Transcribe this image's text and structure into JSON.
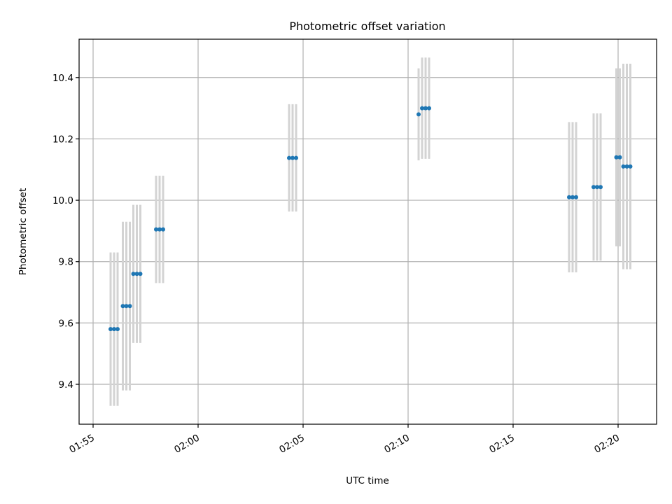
{
  "chart_data": {
    "type": "scatter",
    "title": "Photometric offset variation",
    "xlabel": "UTC time",
    "ylabel": "Photometric offset",
    "xlim": [
      "01:54:20",
      "02:21:50"
    ],
    "ylim": [
      9.27,
      10.525
    ],
    "x_ticks": [
      "01:55",
      "02:00",
      "02:05",
      "02:10",
      "02:15",
      "02:20"
    ],
    "y_ticks": [
      9.4,
      9.6,
      9.8,
      10.0,
      10.2,
      10.4
    ],
    "grid": true,
    "colors": {
      "points": "#1f77b4",
      "errorbars": "#d3d3d3"
    },
    "points": [
      {
        "x": "01:55:50",
        "y": 9.58,
        "yerr": 0.25
      },
      {
        "x": "01:56:00",
        "y": 9.58,
        "yerr": 0.25
      },
      {
        "x": "01:56:10",
        "y": 9.58,
        "yerr": 0.25
      },
      {
        "x": "01:56:25",
        "y": 9.655,
        "yerr": 0.275
      },
      {
        "x": "01:56:35",
        "y": 9.655,
        "yerr": 0.275
      },
      {
        "x": "01:56:45",
        "y": 9.655,
        "yerr": 0.275
      },
      {
        "x": "01:56:55",
        "y": 9.76,
        "yerr": 0.225
      },
      {
        "x": "01:57:05",
        "y": 9.76,
        "yerr": 0.225
      },
      {
        "x": "01:57:15",
        "y": 9.76,
        "yerr": 0.225
      },
      {
        "x": "01:58:00",
        "y": 9.905,
        "yerr": 0.175
      },
      {
        "x": "01:58:10",
        "y": 9.905,
        "yerr": 0.175
      },
      {
        "x": "01:58:20",
        "y": 9.905,
        "yerr": 0.175
      },
      {
        "x": "02:04:20",
        "y": 10.138,
        "yerr": 0.175
      },
      {
        "x": "02:04:30",
        "y": 10.138,
        "yerr": 0.175
      },
      {
        "x": "02:04:40",
        "y": 10.138,
        "yerr": 0.175
      },
      {
        "x": "02:10:30",
        "y": 10.28,
        "yerr": 0.15
      },
      {
        "x": "02:10:40",
        "y": 10.3,
        "yerr": 0.165
      },
      {
        "x": "02:10:50",
        "y": 10.3,
        "yerr": 0.165
      },
      {
        "x": "02:11:00",
        "y": 10.3,
        "yerr": 0.165
      },
      {
        "x": "02:17:40",
        "y": 10.01,
        "yerr": 0.245
      },
      {
        "x": "02:17:50",
        "y": 10.01,
        "yerr": 0.245
      },
      {
        "x": "02:18:00",
        "y": 10.01,
        "yerr": 0.245
      },
      {
        "x": "02:18:50",
        "y": 10.043,
        "yerr": 0.24
      },
      {
        "x": "02:19:00",
        "y": 10.043,
        "yerr": 0.24
      },
      {
        "x": "02:19:10",
        "y": 10.043,
        "yerr": 0.24
      },
      {
        "x": "02:19:55",
        "y": 10.14,
        "yerr": 0.29
      },
      {
        "x": "02:20:05",
        "y": 10.14,
        "yerr": 0.29
      },
      {
        "x": "02:20:15",
        "y": 10.11,
        "yerr": 0.335
      },
      {
        "x": "02:20:25",
        "y": 10.11,
        "yerr": 0.335
      },
      {
        "x": "02:20:35",
        "y": 10.11,
        "yerr": 0.335
      }
    ]
  }
}
